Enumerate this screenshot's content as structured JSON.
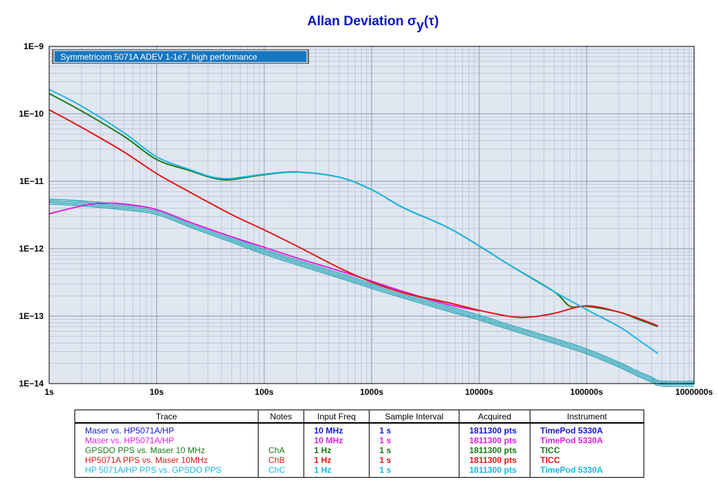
{
  "chart_data": {
    "type": "line",
    "title": "Allan Deviation",
    "title_symbol": "σ",
    "title_sub": "y",
    "title_arg": "(τ)",
    "legend_title": "Symmetricom 5071A ADEV 1-1e7, high performance",
    "x_scale": "log",
    "y_scale": "log",
    "xlim": [
      1,
      1000000
    ],
    "ylim": [
      1e-14,
      1e-09
    ],
    "x_ticks": [
      "1s",
      "10s",
      "100s",
      "1000s",
      "10000s",
      "100000s",
      "1000000s"
    ],
    "y_ticks": [
      "1E−9",
      "1E−10",
      "1E−11",
      "1E−12",
      "1E−13",
      "1E−14"
    ],
    "grid": true,
    "series": [
      {
        "name": "Maser vs. HP5071A/HP",
        "color": "#2aa6b8",
        "band": true,
        "x": [
          1,
          2,
          5,
          10,
          20,
          50,
          100,
          200,
          500,
          1000,
          2000,
          5000,
          10000,
          20000,
          50000,
          100000,
          200000,
          300000,
          400000,
          500000,
          1000000
        ],
        "y": [
          5e-12,
          4.7e-12,
          4.1e-12,
          3.5e-12,
          2.3e-12,
          1.35e-12,
          9e-13,
          6.3e-13,
          4e-13,
          2.8e-13,
          2e-13,
          1.3e-13,
          9.5e-14,
          6.7e-14,
          4.3e-14,
          3e-14,
          1.9e-14,
          1.4e-14,
          1.15e-14,
          1e-14,
          1e-14
        ]
      },
      {
        "name": "Maser vs. HP5071A/HP",
        "color": "#dd22dd",
        "x": [
          1,
          2,
          3,
          5,
          10,
          20,
          50,
          100,
          200,
          500,
          1000,
          2000,
          5000,
          10000
        ],
        "y": [
          3.3e-12,
          4.3e-12,
          4.7e-12,
          4.6e-12,
          3.8e-12,
          2.5e-12,
          1.5e-12,
          1.05e-12,
          7.3e-13,
          4.7e-13,
          3.3e-13,
          2.3e-13,
          1.5e-13,
          1.2e-13
        ]
      },
      {
        "name": "GPSDO PPS vs. Maser 10 MHz",
        "color": "#1a7a1a",
        "x": [
          1,
          2,
          5,
          10,
          20,
          30,
          40,
          50,
          70,
          100,
          200,
          500,
          1000,
          2000,
          5000,
          10000,
          20000,
          50000,
          70000,
          100000,
          200000,
          300000,
          460000
        ],
        "y": [
          2e-10,
          1.1e-10,
          4.6e-11,
          2.1e-11,
          1.45e-11,
          1.17e-11,
          1.06e-11,
          1.06e-11,
          1.15e-11,
          1.25e-11,
          1.37e-11,
          1.15e-11,
          7.5e-12,
          4e-12,
          2.1e-12,
          1.1e-12,
          5.5e-13,
          2.3e-13,
          1.4e-13,
          1.4e-13,
          1.15e-13,
          9e-14,
          7e-14
        ]
      },
      {
        "name": "HP5071A PPS vs. Maser 10MHz",
        "color": "#e01818",
        "x": [
          1,
          2,
          5,
          10,
          20,
          50,
          100,
          200,
          500,
          1000,
          2000,
          5000,
          10000,
          20000,
          30000,
          50000,
          100000,
          200000,
          300000,
          460000
        ],
        "y": [
          1.15e-10,
          6.3e-11,
          2.7e-11,
          1.3e-11,
          7e-12,
          3.2e-12,
          1.9e-12,
          1.1e-12,
          5.2e-13,
          3.2e-13,
          2.2e-13,
          1.6e-13,
          1.22e-13,
          9.8e-14,
          9.7e-14,
          1.1e-13,
          1.42e-13,
          1.15e-13,
          9.3e-14,
          7.2e-14
        ]
      },
      {
        "name": "HP 5071A/HP PPS vs. GPSDO PPS",
        "color": "#1ab6e6",
        "x": [
          1,
          2,
          5,
          10,
          20,
          30,
          40,
          50,
          70,
          100,
          200,
          500,
          1000,
          2000,
          5000,
          10000,
          20000,
          50000,
          100000,
          200000,
          300000,
          460000
        ],
        "y": [
          2.3e-10,
          1.3e-10,
          5.2e-11,
          2.3e-11,
          1.5e-11,
          1.2e-11,
          1.1e-11,
          1.1e-11,
          1.18e-11,
          1.27e-11,
          1.38e-11,
          1.15e-11,
          7.5e-12,
          4e-12,
          2.1e-12,
          1.1e-12,
          5.5e-13,
          2.3e-13,
          1.25e-13,
          7e-14,
          4.5e-14,
          2.8e-14
        ]
      }
    ]
  },
  "table": {
    "headers": [
      "Trace",
      "Notes",
      "Input Freq",
      "Sample Interval",
      "Acquired",
      "Instrument"
    ],
    "rows": [
      {
        "color": "#1818c8",
        "trace": "Maser vs. HP5071A/HP",
        "notes": "",
        "freq": "10 MHz",
        "interval": "1 s",
        "acquired": "1811300 pts",
        "instrument": "TimePod 5330A"
      },
      {
        "color": "#dd22dd",
        "trace": "Maser vs. HP5071A/HP",
        "notes": "",
        "freq": "10 MHz",
        "interval": "1 s",
        "acquired": "1811300 pts",
        "instrument": "TimePod 5330A"
      },
      {
        "color": "#1a7a1a",
        "trace": "GPSDO PPS vs. Maser 10 MHz",
        "notes": "ChA",
        "freq": "1 Hz",
        "interval": "1 s",
        "acquired": "1811300 pts",
        "instrument": "TICC"
      },
      {
        "color": "#e01818",
        "trace": "HP5071A PPS vs. Maser 10MHz",
        "notes": "ChB",
        "freq": "1 Hz",
        "interval": "1 s",
        "acquired": "1811300 pts",
        "instrument": "TICC"
      },
      {
        "color": "#1ab6e6",
        "trace": "HP 5071A/HP PPS vs. GPSDO PPS",
        "notes": "ChC",
        "freq": "1 Hz",
        "interval": "1 s",
        "acquired": "1811300 pts",
        "instrument": "TimePod 5330A"
      }
    ]
  }
}
